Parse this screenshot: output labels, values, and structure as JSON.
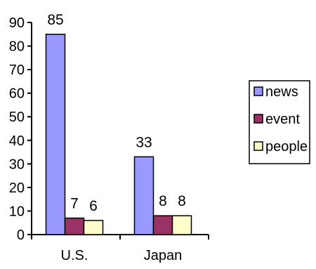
{
  "chart_data": {
    "type": "bar",
    "categories": [
      "U.S.",
      "Japan"
    ],
    "series": [
      {
        "name": "news",
        "values": [
          85,
          33
        ],
        "color": "#9999ff"
      },
      {
        "name": "event",
        "values": [
          7,
          8
        ],
        "color": "#993366"
      },
      {
        "name": "people",
        "values": [
          6,
          8
        ],
        "color": "#ffffcc"
      }
    ],
    "yticks": [
      0,
      10,
      20,
      30,
      40,
      50,
      60,
      70,
      80,
      90
    ],
    "ylim": [
      0,
      90
    ],
    "title": "",
    "xlabel": "",
    "ylabel": "",
    "grid": false,
    "legend_position": "right"
  }
}
